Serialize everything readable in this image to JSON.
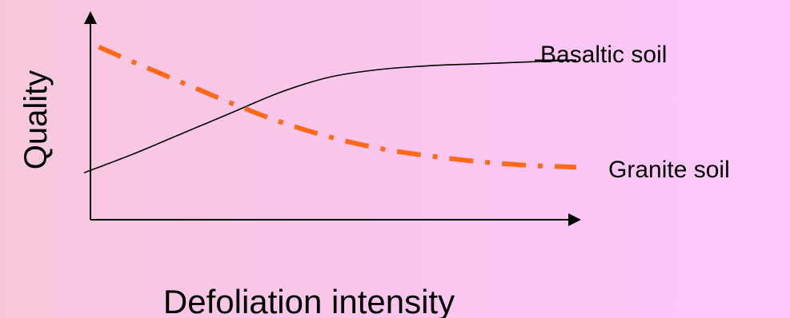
{
  "chart_data": {
    "type": "line",
    "title": "",
    "xlabel": "Defoliation intensity",
    "ylabel": "Quality",
    "xlim": [
      0,
      10
    ],
    "ylim": [
      0,
      10
    ],
    "grid": false,
    "legend": "inline-right",
    "series": [
      {
        "name": "Basaltic soil",
        "color": "#000000",
        "style": "solid",
        "x": [
          0,
          1,
          2,
          3,
          4,
          5,
          6,
          7,
          8,
          9,
          10
        ],
        "y": [
          2.5,
          3.5,
          4.6,
          5.7,
          6.8,
          7.6,
          8.0,
          8.2,
          8.3,
          8.4,
          8.5
        ]
      },
      {
        "name": "Granite soil",
        "color": "#ff6a1a",
        "style": "dash-dot",
        "x": [
          0.3,
          1,
          2,
          3,
          4,
          5,
          6,
          7,
          8,
          9,
          10
        ],
        "y": [
          9.2,
          8.4,
          7.3,
          6.2,
          5.2,
          4.4,
          3.8,
          3.4,
          3.1,
          2.9,
          2.8
        ]
      }
    ]
  }
}
